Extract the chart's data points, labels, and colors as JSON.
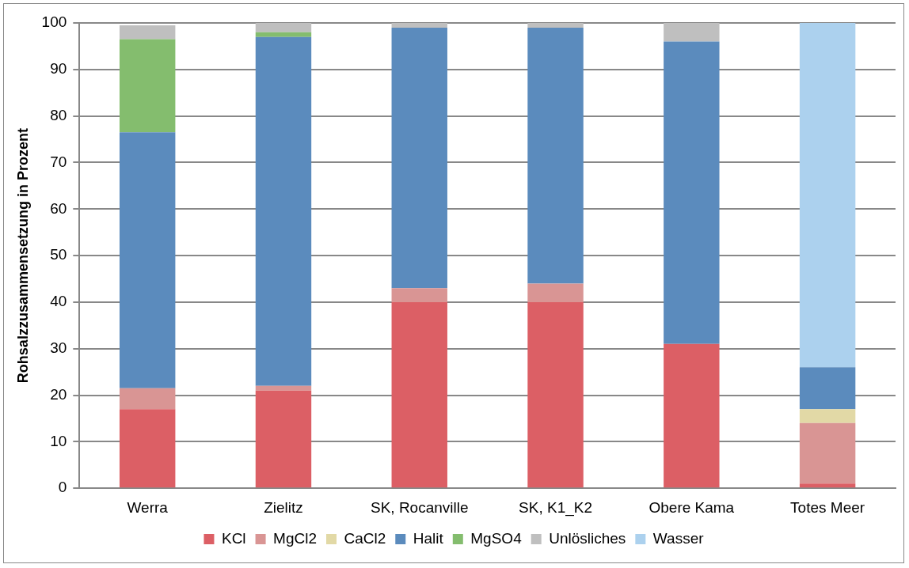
{
  "chart_data": {
    "type": "bar",
    "stacked": true,
    "ylabel": "Rohsalzzusammensetzung in Prozent",
    "categories": [
      "Werra",
      "Zielitz",
      "SK, Rocanville",
      "SK, K1_K2",
      "Obere Kama",
      "Totes Meer"
    ],
    "series": [
      {
        "name": "KCl",
        "color": "#dc5f65",
        "values": [
          17,
          21,
          40,
          40,
          31,
          1
        ]
      },
      {
        "name": "MgCl2",
        "color": "#d99594",
        "values": [
          4.5,
          1,
          3,
          4,
          0,
          13
        ]
      },
      {
        "name": "CaCl2",
        "color": "#e2d9a6",
        "values": [
          0,
          0,
          0,
          0,
          0,
          3
        ]
      },
      {
        "name": "Halit",
        "color": "#5b8bbd",
        "values": [
          55,
          75,
          56,
          55,
          65,
          9
        ]
      },
      {
        "name": "MgSO4",
        "color": "#84bd6e",
        "values": [
          20,
          1,
          0,
          0,
          0,
          0
        ]
      },
      {
        "name": "Unlösliches",
        "color": "#bfbfbf",
        "values": [
          3,
          2,
          1,
          1,
          4,
          0
        ]
      },
      {
        "name": "Wasser",
        "color": "#acd1ee",
        "values": [
          0,
          0,
          0,
          0,
          0,
          74
        ]
      }
    ],
    "ylim": [
      0,
      100
    ],
    "yticks": [
      0,
      10,
      20,
      30,
      40,
      50,
      60,
      70,
      80,
      90,
      100
    ],
    "grid": "y",
    "legend": "bottom"
  }
}
